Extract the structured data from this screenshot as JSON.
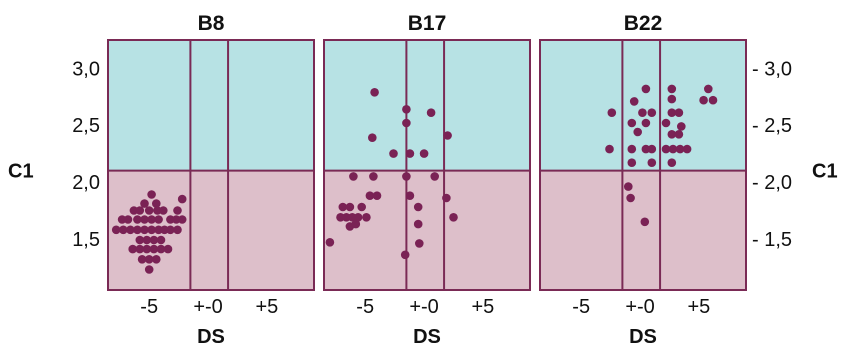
{
  "chart_data": {
    "type": "scatter",
    "ylabel": "C1",
    "xlabel": "DS",
    "xlim": [
      -8.5,
      9
    ],
    "ylim": [
      1.05,
      3.25
    ],
    "x_ticks": [
      -5,
      0,
      5
    ],
    "x_tick_labels": [
      "-5",
      "+-0",
      "+5"
    ],
    "y_ticks": [
      3.0,
      2.5,
      2.0,
      1.5
    ],
    "y_tick_labels_left": [
      "3,0",
      "2,5",
      "2,0",
      "1,5"
    ],
    "y_tick_labels_right": [
      "- 3,0",
      "- 2,5",
      "- 2,0",
      "- 1,5"
    ],
    "y_threshold": 2.1,
    "x_dividers": [
      -1.5,
      1.7
    ],
    "colors": {
      "upper_region": "#b7e2e4",
      "lower_region": "#ddbfca",
      "border": "#7a2a55",
      "point": "#7a2255"
    },
    "panels": [
      {
        "title": "B8",
        "points": [
          {
            "x": -4.8,
            "y": 1.89
          },
          {
            "x": -5.4,
            "y": 1.81
          },
          {
            "x": -4.4,
            "y": 1.81
          },
          {
            "x": -2.2,
            "y": 1.85
          },
          {
            "x": -6.3,
            "y": 1.75
          },
          {
            "x": -5.8,
            "y": 1.75
          },
          {
            "x": -5.0,
            "y": 1.75
          },
          {
            "x": -4.3,
            "y": 1.75
          },
          {
            "x": -3.8,
            "y": 1.75
          },
          {
            "x": -2.6,
            "y": 1.75
          },
          {
            "x": -7.3,
            "y": 1.67
          },
          {
            "x": -6.8,
            "y": 1.67
          },
          {
            "x": -6.0,
            "y": 1.67
          },
          {
            "x": -5.4,
            "y": 1.67
          },
          {
            "x": -4.8,
            "y": 1.67
          },
          {
            "x": -4.2,
            "y": 1.67
          },
          {
            "x": -3.2,
            "y": 1.67
          },
          {
            "x": -2.7,
            "y": 1.67
          },
          {
            "x": -2.2,
            "y": 1.67
          },
          {
            "x": -7.8,
            "y": 1.58
          },
          {
            "x": -7.2,
            "y": 1.58
          },
          {
            "x": -6.6,
            "y": 1.58
          },
          {
            "x": -6.0,
            "y": 1.58
          },
          {
            "x": -5.4,
            "y": 1.58
          },
          {
            "x": -4.8,
            "y": 1.58
          },
          {
            "x": -4.2,
            "y": 1.58
          },
          {
            "x": -3.7,
            "y": 1.58
          },
          {
            "x": -3.2,
            "y": 1.58
          },
          {
            "x": -2.6,
            "y": 1.58
          },
          {
            "x": -5.8,
            "y": 1.49
          },
          {
            "x": -5.2,
            "y": 1.49
          },
          {
            "x": -4.6,
            "y": 1.49
          },
          {
            "x": -4.0,
            "y": 1.49
          },
          {
            "x": -6.4,
            "y": 1.41
          },
          {
            "x": -5.8,
            "y": 1.41
          },
          {
            "x": -5.2,
            "y": 1.41
          },
          {
            "x": -4.6,
            "y": 1.41
          },
          {
            "x": -4.0,
            "y": 1.41
          },
          {
            "x": -3.4,
            "y": 1.41
          },
          {
            "x": -5.6,
            "y": 1.32
          },
          {
            "x": -5.0,
            "y": 1.32
          },
          {
            "x": -4.4,
            "y": 1.32
          },
          {
            "x": -5.0,
            "y": 1.23
          }
        ]
      },
      {
        "title": "B17",
        "points": [
          {
            "x": -4.2,
            "y": 2.79
          },
          {
            "x": -1.5,
            "y": 2.64
          },
          {
            "x": 0.6,
            "y": 2.61
          },
          {
            "x": -1.5,
            "y": 2.52
          },
          {
            "x": -4.4,
            "y": 2.39
          },
          {
            "x": 2.0,
            "y": 2.41
          },
          {
            "x": -2.6,
            "y": 2.25
          },
          {
            "x": -1.2,
            "y": 2.25
          },
          {
            "x": 0.0,
            "y": 2.25
          },
          {
            "x": -6.0,
            "y": 2.05
          },
          {
            "x": -4.3,
            "y": 2.05
          },
          {
            "x": -1.5,
            "y": 2.05
          },
          {
            "x": 0.9,
            "y": 2.05
          },
          {
            "x": -4.6,
            "y": 1.88
          },
          {
            "x": -4.0,
            "y": 1.88
          },
          {
            "x": -1.2,
            "y": 1.88
          },
          {
            "x": 1.9,
            "y": 1.86
          },
          {
            "x": -6.9,
            "y": 1.78
          },
          {
            "x": -6.3,
            "y": 1.78
          },
          {
            "x": -5.3,
            "y": 1.78
          },
          {
            "x": -0.5,
            "y": 1.78
          },
          {
            "x": -7.1,
            "y": 1.69
          },
          {
            "x": -6.6,
            "y": 1.69
          },
          {
            "x": -6.1,
            "y": 1.69
          },
          {
            "x": -5.6,
            "y": 1.69
          },
          {
            "x": -4.9,
            "y": 1.69
          },
          {
            "x": 2.5,
            "y": 1.69
          },
          {
            "x": -6.3,
            "y": 1.61
          },
          {
            "x": -5.8,
            "y": 1.63
          },
          {
            "x": -0.5,
            "y": 1.63
          },
          {
            "x": -8.0,
            "y": 1.47
          },
          {
            "x": -0.4,
            "y": 1.46
          },
          {
            "x": -1.6,
            "y": 1.36
          }
        ]
      },
      {
        "title": "B22",
        "points": [
          {
            "x": 0.5,
            "y": 2.82
          },
          {
            "x": 2.7,
            "y": 2.82
          },
          {
            "x": 5.8,
            "y": 2.82
          },
          {
            "x": -0.5,
            "y": 2.71
          },
          {
            "x": 2.7,
            "y": 2.73
          },
          {
            "x": 5.4,
            "y": 2.72
          },
          {
            "x": 6.2,
            "y": 2.72
          },
          {
            "x": -2.4,
            "y": 2.61
          },
          {
            "x": 0.2,
            "y": 2.61
          },
          {
            "x": 1.0,
            "y": 2.61
          },
          {
            "x": 2.7,
            "y": 2.61
          },
          {
            "x": 3.3,
            "y": 2.61
          },
          {
            "x": -0.7,
            "y": 2.52
          },
          {
            "x": 0.5,
            "y": 2.52
          },
          {
            "x": 2.2,
            "y": 2.52
          },
          {
            "x": 3.5,
            "y": 2.49
          },
          {
            "x": -0.2,
            "y": 2.44
          },
          {
            "x": 2.7,
            "y": 2.42
          },
          {
            "x": 3.3,
            "y": 2.42
          },
          {
            "x": -2.6,
            "y": 2.29
          },
          {
            "x": -0.7,
            "y": 2.29
          },
          {
            "x": 0.5,
            "y": 2.29
          },
          {
            "x": 1.0,
            "y": 2.29
          },
          {
            "x": 2.2,
            "y": 2.29
          },
          {
            "x": 2.8,
            "y": 2.29
          },
          {
            "x": 3.4,
            "y": 2.29
          },
          {
            "x": 4.0,
            "y": 2.29
          },
          {
            "x": -0.7,
            "y": 2.17
          },
          {
            "x": 1.0,
            "y": 2.17
          },
          {
            "x": 2.7,
            "y": 2.17
          },
          {
            "x": -1.0,
            "y": 1.96
          },
          {
            "x": -0.8,
            "y": 1.86
          },
          {
            "x": 0.4,
            "y": 1.65
          }
        ]
      }
    ]
  }
}
